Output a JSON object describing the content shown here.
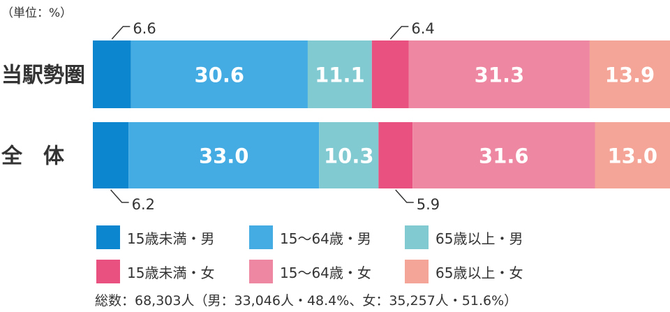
{
  "unit_note": "（単位：%）",
  "chart_data": {
    "type": "bar",
    "orientation": "horizontal",
    "stacked": true,
    "percent": true,
    "categories": [
      "当駅勢圏",
      "全　体"
    ],
    "series": [
      {
        "name": "15歳未満・男",
        "values": [
          6.6,
          6.2
        ],
        "color": "#0b86cf"
      },
      {
        "name": "15〜64歳・男",
        "values": [
          30.6,
          33.0
        ],
        "color": "#44ace3"
      },
      {
        "name": "65歳以上・男",
        "values": [
          11.1,
          10.3
        ],
        "color": "#82cad2"
      },
      {
        "name": "15歳未満・女",
        "values": [
          6.4,
          5.9
        ],
        "color": "#e85180"
      },
      {
        "name": "15〜64歳・女",
        "values": [
          31.3,
          31.6
        ],
        "color": "#ee88a2"
      },
      {
        "name": "65歳以上・女",
        "values": [
          13.9,
          13.0
        ],
        "color": "#f4a597"
      }
    ],
    "data_labels": [
      [
        "6.6",
        "30.6",
        "11.1",
        "6.4",
        "31.3",
        "13.9"
      ],
      [
        "6.2",
        "33.0",
        "10.3",
        "5.9",
        "31.6",
        "13.0"
      ]
    ]
  },
  "legend": [
    {
      "label": "15歳未満・男",
      "color": "#0b86cf"
    },
    {
      "label": "15〜64歳・男",
      "color": "#44ace3"
    },
    {
      "label": "65歳以上・男",
      "color": "#82cad2"
    },
    {
      "label": "15歳未満・女",
      "color": "#e85180"
    },
    {
      "label": "15〜64歳・女",
      "color": "#ee88a2"
    },
    {
      "label": "65歳以上・女",
      "color": "#f4a597"
    }
  ],
  "total_note": "総数：68,303人（男：33,046人・48.4%、女：35,257人・51.6%）"
}
